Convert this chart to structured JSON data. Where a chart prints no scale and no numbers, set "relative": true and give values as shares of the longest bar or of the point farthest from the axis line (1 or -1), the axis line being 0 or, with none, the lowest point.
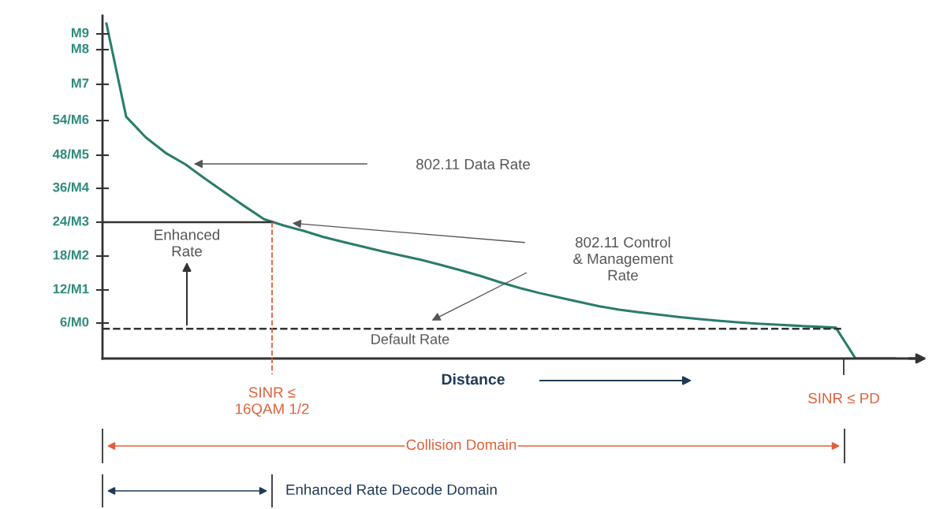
{
  "chart_data": {
    "type": "line",
    "relative": true,
    "categories": [
      null,
      null,
      null,
      null,
      null,
      null,
      null,
      null,
      null,
      null,
      null,
      null,
      null,
      null,
      null,
      null,
      null,
      null,
      null,
      null,
      null,
      null,
      null,
      null,
      null,
      null,
      null,
      null,
      null,
      null,
      null,
      null,
      null,
      null,
      null,
      null,
      null,
      null,
      null,
      null,
      null
    ],
    "series": [
      {
        "color": "#2a7d6b",
        "values": [
          1,
          0.722,
          0.66,
          0.614,
          0.58,
          0.537,
          0.496,
          0.455,
          0.416,
          0.397,
          0.381,
          0.363,
          0.348,
          0.334,
          0.32,
          0.307,
          0.294,
          0.279,
          0.263,
          0.246,
          0.227,
          0.21,
          0.195,
          0.182,
          0.169,
          0.156,
          0.146,
          0.138,
          0.131,
          0.124,
          0.118,
          0.113,
          0.108,
          0.104,
          0.101,
          0.098,
          0.095,
          0.092,
          0,
          0,
          0
        ]
      }
    ],
    "xlabel": "Distance",
    "ref_lines": [
      {
        "axis": "y",
        "value": 0.089,
        "label": "Default Rate",
        "color": "#333333",
        "line_style": "dashed"
      },
      {
        "axis": "y",
        "value": 0.407,
        "color": "#333333",
        "line_style": "solid"
      }
    ],
    "annotations": [
      "802.11 Data Rate",
      "802.11 Control\n& Management\nRate",
      "Enhanced\nRate",
      "SINR ≤\n16QAM 1/2",
      "SINR ≤ PD",
      "Collision Domain",
      "Enhanced Rate Decode Domain",
      "6/M0",
      "12/M1",
      "18/M2",
      "24/M3",
      "36/M4",
      "48/M5",
      "54/M6",
      "M7",
      "M8",
      "M9"
    ],
    "legend": false,
    "marker": "none",
    "line_style": "solid"
  }
}
